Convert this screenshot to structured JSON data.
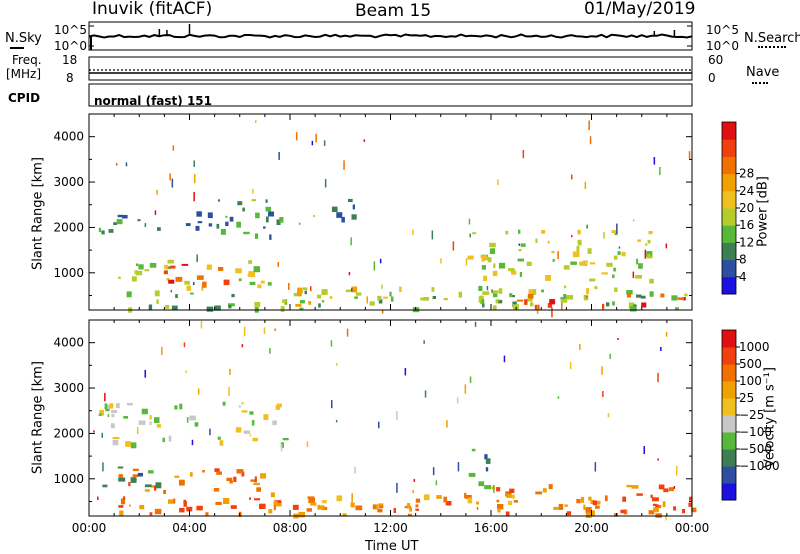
{
  "header": {
    "station": "Inuvik (fitACF)",
    "beam": "Beam 15",
    "date": "01/May/2019"
  },
  "top_panel": {
    "left_label": "N.Sky",
    "right_label": "N.Search",
    "left_ticks": [
      "10^5",
      "10^0"
    ],
    "right_ticks": [
      "10^5",
      "10^0"
    ]
  },
  "freq_panel": {
    "left_label_1": "Freq.",
    "left_label_2": "[MHz]",
    "right_label": "Nave",
    "left_ticks": [
      "18",
      "8"
    ],
    "right_ticks": [
      "60",
      "0"
    ]
  },
  "cpid": {
    "label": "CPID",
    "value": "normal (fast) 151"
  },
  "chart_data": [
    {
      "type": "heatmap",
      "title": "",
      "xlabel": "Time UT",
      "ylabel": "Slant Range [km]",
      "xticks": [
        "00:00",
        "04:00",
        "08:00",
        "12:00",
        "16:00",
        "20:00",
        "00:00"
      ],
      "xlim_hours": [
        0,
        24
      ],
      "yticks": [
        1000,
        2000,
        3000,
        4000
      ],
      "ylim": [
        180,
        4500
      ],
      "colorbar": {
        "label": "Power [dB]",
        "ticks": [
          "4",
          "8",
          "12",
          "16",
          "20",
          "24",
          "28"
        ],
        "colors": [
          "#1a10e0",
          "#2e4fa0",
          "#3d7f52",
          "#58b83a",
          "#b6cc2a",
          "#f0c020",
          "#f0a000",
          "#f07000",
          "#f04010",
          "#e01010"
        ]
      },
      "regions": [
        {
          "t0": 0.2,
          "t1": 23.9,
          "r0": 230,
          "r1": 620,
          "c": 3
        },
        {
          "t0": 1.0,
          "t1": 7.5,
          "r0": 700,
          "r1": 1300,
          "c": 4
        },
        {
          "t0": 2.0,
          "t1": 5.5,
          "r0": 800,
          "r1": 1200,
          "c": 8
        },
        {
          "t0": 0.3,
          "t1": 7.8,
          "r0": 1800,
          "r1": 2400,
          "c": 2
        },
        {
          "t0": 4.5,
          "t1": 7.5,
          "r0": 2400,
          "r1": 2700,
          "c": 3
        },
        {
          "t0": 9.5,
          "t1": 11.5,
          "r0": 2200,
          "r1": 2650,
          "c": 2
        },
        {
          "t0": 15.0,
          "t1": 22.5,
          "r0": 600,
          "r1": 2000,
          "c": 4
        },
        {
          "t0": 17.0,
          "t1": 24.0,
          "r0": 250,
          "r1": 560,
          "c": 8
        },
        {
          "t0": 8.0,
          "t1": 17.0,
          "r0": 300,
          "r1": 700,
          "c": 5
        }
      ]
    },
    {
      "type": "heatmap",
      "title": "",
      "xlabel": "Time UT",
      "ylabel": "Slant Range [km]",
      "xticks": [
        "00:00",
        "04:00",
        "08:00",
        "12:00",
        "16:00",
        "20:00",
        "00:00"
      ],
      "xlim_hours": [
        0,
        24
      ],
      "yticks": [
        1000,
        2000,
        3000,
        4000
      ],
      "ylim": [
        180,
        4500
      ],
      "colorbar": {
        "label": "Velocity [m s⁻¹]",
        "ticks": [
          "1000",
          "500",
          "100",
          "25",
          "−25",
          "−100",
          "−500",
          "−1000"
        ],
        "colors": [
          "#1a10e0",
          "#2e4fa0",
          "#3d7f52",
          "#58b83a",
          "#c8c8c8",
          "#f0c020",
          "#f0a000",
          "#f07000",
          "#f04010",
          "#e01010"
        ]
      },
      "regions": [
        {
          "t0": 0.2,
          "t1": 23.9,
          "r0": 230,
          "r1": 620,
          "c": 7
        },
        {
          "t0": 1.0,
          "t1": 7.5,
          "r0": 700,
          "r1": 1300,
          "c": 7
        },
        {
          "t0": 0.5,
          "t1": 3.0,
          "r0": 850,
          "r1": 1300,
          "c": 2
        },
        {
          "t0": 0.3,
          "t1": 7.8,
          "r0": 1800,
          "r1": 2700,
          "c": 4
        },
        {
          "t0": 15.0,
          "t1": 16.0,
          "r0": 700,
          "r1": 1700,
          "c": 2
        },
        {
          "t0": 16.0,
          "t1": 24.0,
          "r0": 300,
          "r1": 900,
          "c": 7
        },
        {
          "t0": 8.0,
          "t1": 17.0,
          "r0": 300,
          "r1": 700,
          "c": 6
        }
      ]
    }
  ]
}
